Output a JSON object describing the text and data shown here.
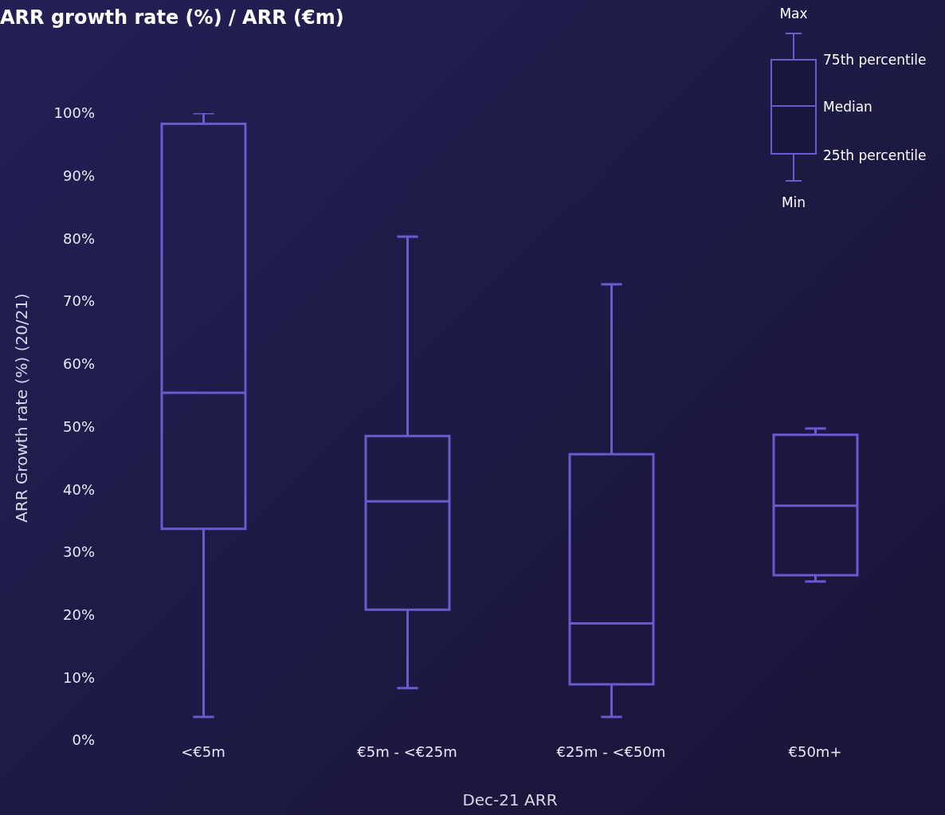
{
  "chart_data": {
    "type": "box",
    "title": "ARR growth rate (%) / ARR (€m)",
    "xlabel": "Dec-21 ARR",
    "ylabel": "ARR Growth rate (%) (20/21)",
    "categories": [
      "<€5m",
      "€5m - <€25m",
      "€25m - <€50m",
      "€50m+"
    ],
    "color": "#6a5acd",
    "boxes": [
      {
        "low": 3.7,
        "q1": 33.7,
        "median": 55.4,
        "q3": 98.3,
        "high": 100
      },
      {
        "low": 8.3,
        "q1": 20.8,
        "median": 38.1,
        "q3": 48.5,
        "high": 80.3
      },
      {
        "low": 3.7,
        "q1": 8.9,
        "median": 18.6,
        "q3": 45.6,
        "high": 72.7
      },
      {
        "low": 25.3,
        "q1": 26.3,
        "median": 37.4,
        "q3": 48.7,
        "high": 49.7
      }
    ],
    "ylim": [
      0,
      100
    ],
    "yticks": [
      {
        "value": 0,
        "label": "0%"
      },
      {
        "value": 10,
        "label": "10%"
      },
      {
        "value": 20,
        "label": "20%"
      },
      {
        "value": 30,
        "label": "30%"
      },
      {
        "value": 40,
        "label": "40%"
      },
      {
        "value": 50,
        "label": "50%"
      },
      {
        "value": 60,
        "label": "60%"
      },
      {
        "value": 70,
        "label": "70%"
      },
      {
        "value": 80,
        "label": "80%"
      },
      {
        "value": 90,
        "label": "90%"
      },
      {
        "value": 100,
        "label": "100%"
      }
    ],
    "annotations": [
      "Max",
      "75th percentile",
      "Median",
      "25th percentile",
      "Min"
    ]
  }
}
